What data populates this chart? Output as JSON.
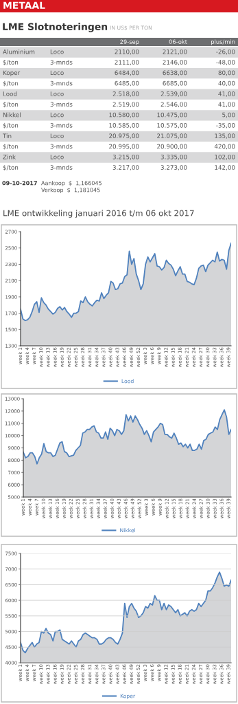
{
  "chart_data": [
    {
      "type": "other",
      "title": "METAAL",
      "subtitle": "LME Slotnoteringen",
      "categories": [
        null,
        null,
        "29-sep",
        "06-okt",
        "plus/min"
      ],
      "y_categories": [
        "Aluminium",
        "$/ton",
        "Koper",
        "$/ton",
        "Lood",
        "$/ton",
        "Nikkel",
        "$/ton",
        "Tin",
        "$/ton",
        "Zink",
        "$/ton"
      ],
      "y2_categories": [
        "Loco",
        "3-mnds",
        "Loco",
        "3-mnds",
        "Loco",
        "3-mnds",
        "Loco",
        "3-mnds",
        "Loco",
        "3-mnds",
        "Loco",
        "3-mnds"
      ],
      "cell_labels": [
        [
          "2110,00",
          "2121,00",
          "-26,00"
        ],
        [
          "2111,00",
          "2146,00",
          "-48,00"
        ],
        [
          "6484,00",
          "6638,00",
          "80,00"
        ],
        [
          "6485,00",
          "6685,00",
          "40,00"
        ],
        [
          "2.518,00",
          "2.539,00",
          "41,00"
        ],
        [
          "2.519,00",
          "2.546,00",
          "41,00"
        ],
        [
          "10.580,00",
          "10.475,00",
          "5,00"
        ],
        [
          "10.585,00",
          "10.575,00",
          "-35,00"
        ],
        [
          "20.975,00",
          "21.075,00",
          "135,00"
        ],
        [
          "20.995,00",
          "20.900,00",
          "420,00"
        ],
        [
          "3.215,00",
          "3.335,00",
          "102,00"
        ],
        [
          "3.217,00",
          "3.273,00",
          "142,00"
        ]
      ],
      "annotations": [
        "IN US$ PER TON",
        "09-10-2017",
        "Aankoop  $  1,166045",
        "Verkoop  $  1,181045"
      ]
    },
    {
      "type": "area",
      "title": "LME ontwikkeling januari 2016 t/m 06 okt 2017",
      "categories": [
        "week 1",
        null,
        null,
        "week 4",
        null,
        null,
        "week 7",
        null,
        null,
        "week 10",
        null,
        null,
        "week 13",
        null,
        null,
        "week 16",
        null,
        null,
        "week 19",
        null,
        null,
        "week 22",
        null,
        null,
        "week 25",
        null,
        null,
        "week 28",
        null,
        null,
        "week 31",
        null,
        null,
        "week 34",
        null,
        null,
        "week 37",
        null,
        null,
        "week 40",
        null,
        null,
        "week 43",
        null,
        null,
        "week 46",
        null,
        null,
        "week 49",
        null,
        null,
        "week 52",
        null,
        null,
        "week 3",
        null,
        null,
        "week 6",
        null,
        null,
        "week 9",
        null,
        null,
        "week 12",
        null,
        null,
        "week 15",
        null,
        null,
        "week 18",
        null,
        null,
        "week 21",
        null,
        null,
        "week 24",
        null,
        null,
        "week 27",
        null,
        null,
        "week 30",
        null,
        null,
        "week 33",
        null,
        null,
        "week 36",
        null,
        null,
        "week 39",
        null
      ],
      "series": [
        {
          "name": "Lood",
          "color": "#4f81bd",
          "values": [
            1750,
            1630,
            1610,
            1620,
            1650,
            1720,
            1810,
            1840,
            1710,
            1890,
            1830,
            1800,
            1750,
            1720,
            1690,
            1710,
            1760,
            1780,
            1740,
            1770,
            1720,
            1690,
            1650,
            1700,
            1700,
            1720,
            1850,
            1830,
            1900,
            1840,
            1810,
            1790,
            1830,
            1860,
            1850,
            1950,
            1880,
            1920,
            1950,
            2090,
            2070,
            1990,
            2000,
            2060,
            2070,
            2150,
            2170,
            2460,
            2300,
            2370,
            2180,
            2100,
            1990,
            2060,
            2300,
            2390,
            2330,
            2380,
            2430,
            2280,
            2270,
            2230,
            2260,
            2350,
            2310,
            2290,
            2240,
            2160,
            2220,
            2270,
            2180,
            2180,
            2090,
            2080,
            2060,
            2050,
            2130,
            2250,
            2280,
            2290,
            2210,
            2290,
            2320,
            2350,
            2330,
            2450,
            2340,
            2360,
            2350,
            2240,
            2470,
            2560
          ]
        }
      ],
      "ylim": [
        1300,
        2700
      ],
      "yticks": [
        1300,
        1500,
        1700,
        1900,
        2100,
        2300,
        2500,
        2700
      ],
      "legend": "bottom"
    },
    {
      "type": "area",
      "categories": [
        "week 1",
        null,
        null,
        "week 4",
        null,
        null,
        "week 7",
        null,
        null,
        "week 10",
        null,
        null,
        "week 13",
        null,
        null,
        "week 16",
        null,
        null,
        "week 19",
        null,
        null,
        "week 22",
        null,
        null,
        "week 25",
        null,
        null,
        "week 28",
        null,
        null,
        "week 31",
        null,
        null,
        "week 34",
        null,
        null,
        "week 37",
        null,
        null,
        "week 40",
        null,
        null,
        "week 43",
        null,
        null,
        "week 46",
        null,
        null,
        "week 49",
        null,
        null,
        "week 52",
        null,
        null,
        "week 3",
        null,
        null,
        "week 6",
        null,
        null,
        "week 9",
        null,
        null,
        "week 12",
        null,
        null,
        "week 15",
        null,
        null,
        "week 18",
        null,
        null,
        "week 21",
        null,
        null,
        "week 24",
        null,
        null,
        "week 27",
        null,
        null,
        "week 30",
        null,
        null,
        "week 33",
        null,
        null,
        "week 36",
        null,
        null,
        "week 39",
        null
      ],
      "series": [
        {
          "name": "Nikkel",
          "color": "#4f81bd",
          "values": [
            8650,
            8200,
            8300,
            8600,
            8600,
            8300,
            7700,
            8200,
            8500,
            9350,
            8700,
            8600,
            8600,
            8300,
            8400,
            8900,
            9400,
            9500,
            8700,
            8600,
            8300,
            8350,
            8400,
            8800,
            9000,
            9200,
            10200,
            10300,
            10500,
            10500,
            10700,
            10800,
            10300,
            10200,
            9800,
            9800,
            10300,
            9700,
            10600,
            10400,
            10000,
            10500,
            10400,
            10100,
            10400,
            11700,
            11200,
            11600,
            11100,
            11600,
            11300,
            10900,
            10600,
            10100,
            10400,
            10000,
            9500,
            10300,
            10500,
            10700,
            11000,
            10900,
            10100,
            10100,
            9900,
            9800,
            10200,
            9800,
            9300,
            9400,
            9100,
            9300,
            9000,
            9300,
            8800,
            8800,
            8900,
            9300,
            8900,
            9600,
            9700,
            10100,
            10200,
            10300,
            10700,
            10500,
            11300,
            11700,
            12100,
            11500,
            10100,
            10500
          ]
        }
      ],
      "ylim": [
        5000,
        13000
      ],
      "yticks": [
        5000,
        6000,
        7000,
        8000,
        9000,
        10000,
        11000,
        12000,
        13000
      ],
      "legend": "bottom"
    },
    {
      "type": "area",
      "categories": [
        "week 1",
        null,
        null,
        "week 4",
        null,
        null,
        "week 7",
        null,
        null,
        "week 10",
        null,
        null,
        "week 13",
        null,
        null,
        "week 16",
        null,
        null,
        "week 19",
        null,
        null,
        "week 22",
        null,
        null,
        "week 25",
        null,
        null,
        "week 28",
        null,
        null,
        "week 31",
        null,
        null,
        "week 34",
        null,
        null,
        "week 37",
        null,
        null,
        "week 40",
        null,
        null,
        "week 43",
        null,
        null,
        "week 46",
        null,
        null,
        "week 49",
        null,
        null,
        "week 52",
        null,
        null,
        "week 3",
        null,
        null,
        "week 6",
        null,
        null,
        "week 9",
        null,
        null,
        "week 12",
        null,
        null,
        "week 15",
        null,
        null,
        "week 18",
        null,
        null,
        "week 21",
        null,
        null,
        "week 24",
        null,
        null,
        "week 27",
        null,
        null,
        "week 30",
        null,
        null,
        "week 33",
        null,
        null,
        "week 36",
        null,
        null,
        "week 39",
        null
      ],
      "series": [
        {
          "name": "Koper",
          "color": "#4f81bd",
          "values": [
            4650,
            4400,
            4320,
            4450,
            4550,
            4650,
            4500,
            4600,
            4650,
            5000,
            4950,
            5100,
            4950,
            4900,
            4700,
            5000,
            5000,
            5050,
            4750,
            4700,
            4650,
            4600,
            4700,
            4600,
            4500,
            4700,
            4750,
            4900,
            4950,
            4900,
            4850,
            4800,
            4800,
            4750,
            4600,
            4600,
            4650,
            4750,
            4800,
            4800,
            4750,
            4650,
            4600,
            4750,
            4950,
            5900,
            5450,
            5800,
            5900,
            5750,
            5650,
            5450,
            5500,
            5600,
            5800,
            5750,
            5900,
            5850,
            6150,
            6000,
            6000,
            5700,
            5900,
            5700,
            5850,
            5800,
            5700,
            5600,
            5700,
            5500,
            5550,
            5600,
            5500,
            5650,
            5700,
            5650,
            5700,
            5900,
            5800,
            5900,
            6000,
            6300,
            6300,
            6400,
            6550,
            6750,
            6900,
            6700,
            6450,
            6500,
            6450,
            6650
          ]
        }
      ],
      "ylim": [
        4000,
        7500
      ],
      "yticks": [
        4000,
        4500,
        5000,
        5500,
        6000,
        6500,
        7000,
        7500
      ],
      "grid": "y",
      "legend": "bottom"
    }
  ]
}
